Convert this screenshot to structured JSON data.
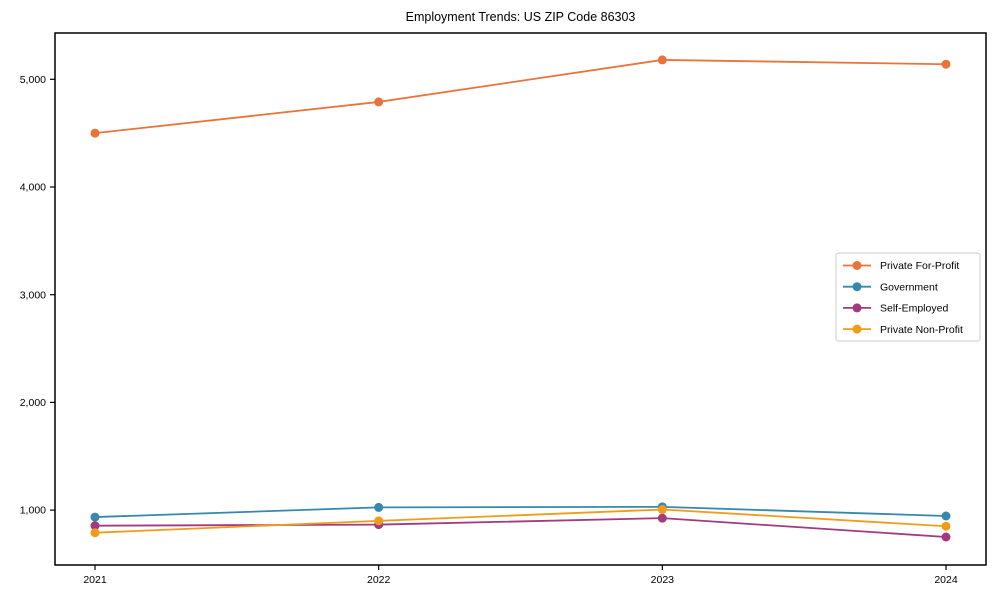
{
  "chart_data": {
    "type": "line",
    "title": "Employment Trends: US ZIP Code 86303",
    "x": [
      2021,
      2022,
      2023,
      2024
    ],
    "x_tick_labels": [
      "2021",
      "2022",
      "2023",
      "2024"
    ],
    "y_ticks": [
      1000,
      2000,
      3000,
      4000,
      5000
    ],
    "y_tick_labels": [
      "1,000",
      "2,000",
      "3,000",
      "4,000",
      "5,000"
    ],
    "ylim": [
      490,
      5430
    ],
    "xlabel": "",
    "ylabel": "",
    "grid": false,
    "legend_position": "center right",
    "marker": "circle",
    "axis_color": "#000000",
    "legend_border_color": "#cccccc",
    "background": "#ffffff",
    "series": [
      {
        "name": "Private For-Profit",
        "color": "#e8743b",
        "values": [
          4500,
          4790,
          5180,
          5140
        ]
      },
      {
        "name": "Government",
        "color": "#3689ab",
        "values": [
          935,
          1025,
          1030,
          945
        ]
      },
      {
        "name": "Self-Employed",
        "color": "#a23a7e",
        "values": [
          855,
          865,
          925,
          750
        ]
      },
      {
        "name": "Private Non-Profit",
        "color": "#f09c1b",
        "values": [
          790,
          900,
          1005,
          850
        ]
      }
    ]
  }
}
